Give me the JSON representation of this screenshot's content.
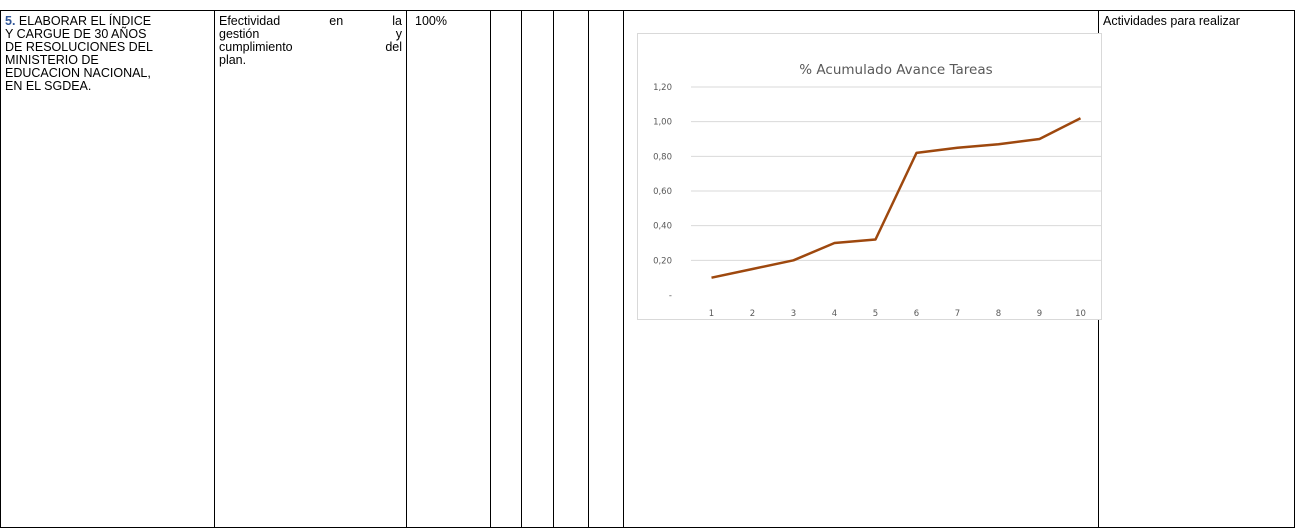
{
  "row": {
    "item_number": "5.",
    "item_text": "ELABORAR EL ÍNDICE Y CARGUE DE 30 AÑOS DE RESOLUCIONES DEL MINISTERIO DE EDUCACION NACIONAL, EN EL SGDEA.",
    "item_lines": [
      "ELABORAR EL ÍNDICE",
      "Y CARGUE DE 30 AÑOS",
      "DE RESOLUCIONES DEL",
      "MINISTERIO DE",
      "EDUCACION NACIONAL,",
      "EN EL SGDEA."
    ],
    "indicator_lines": [
      "Efectividad en la",
      "gestión y",
      "cumplimiento del",
      "plan."
    ],
    "target": "100%",
    "activities": "Actividades para realizar"
  },
  "colors": {
    "line": "#9e480e",
    "grid": "#d9d9d9",
    "axis_text": "#595959",
    "title_text": "#595959",
    "item_number": "#2f5597"
  },
  "chart_data": {
    "type": "line",
    "title": "% Acumulado Avance Tareas",
    "x": [
      1,
      2,
      3,
      4,
      5,
      6,
      7,
      8,
      9,
      10
    ],
    "x_tick_labels": [
      "1",
      "2",
      "3",
      "4",
      "5",
      "6",
      "7",
      "8",
      "9",
      "10"
    ],
    "series": [
      {
        "values": [
          0.1,
          0.15,
          0.2,
          0.3,
          0.32,
          0.82,
          0.85,
          0.87,
          0.9,
          1.02
        ]
      }
    ],
    "ylim": [
      0,
      1.2
    ],
    "y_ticks": [
      0,
      0.2,
      0.4,
      0.6,
      0.8,
      1.0,
      1.2
    ],
    "y_tick_labels": [
      "-",
      "0,20",
      "0,40",
      "0,60",
      "0,80",
      "1,00",
      "1,20"
    ],
    "xlabel": "",
    "ylabel": "",
    "grid": true,
    "legend": "none"
  }
}
